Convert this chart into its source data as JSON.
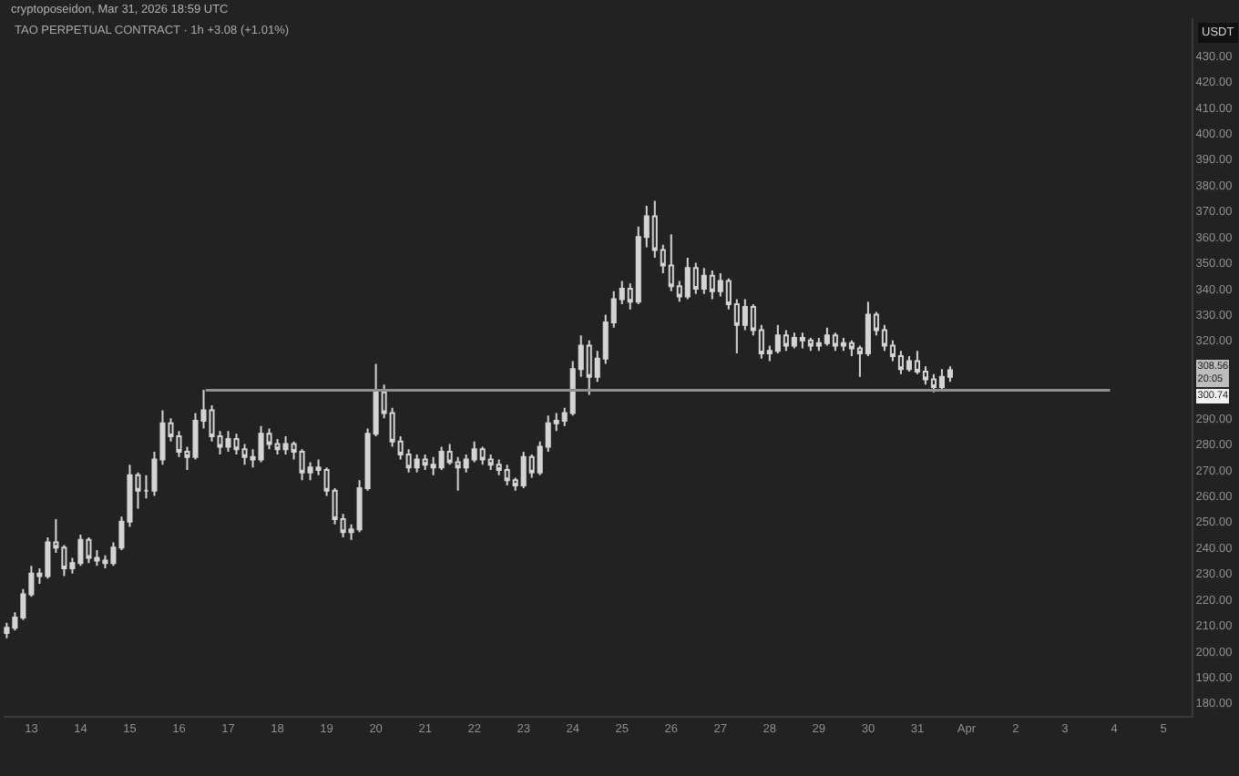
{
  "chart_data": {
    "type": "candlestick",
    "title": "TAO PERPETUAL CONTRACT · 1h +3.08 (+1.01%)",
    "subtitle": "cryptoposeidon, Mar 31, 2026 18:59 UTC",
    "ylabel": "USDT",
    "color": "#d4d4d4",
    "x": [
      "2026-03-12T12:00",
      "2026-03-12T16:00",
      "2026-03-12T20:00",
      "2026-03-13T00:00",
      "2026-03-13T04:00",
      "2026-03-13T08:00",
      "2026-03-13T12:00",
      "2026-03-13T16:00",
      "2026-03-13T20:00",
      "2026-03-14T00:00",
      "2026-03-14T04:00",
      "2026-03-14T08:00",
      "2026-03-14T12:00",
      "2026-03-14T16:00",
      "2026-03-14T20:00",
      "2026-03-15T00:00",
      "2026-03-15T04:00",
      "2026-03-15T08:00",
      "2026-03-15T12:00",
      "2026-03-15T16:00",
      "2026-03-15T20:00",
      "2026-03-16T00:00",
      "2026-03-16T04:00",
      "2026-03-16T08:00",
      "2026-03-16T12:00",
      "2026-03-16T16:00",
      "2026-03-16T20:00",
      "2026-03-17T00:00",
      "2026-03-17T04:00",
      "2026-03-17T08:00",
      "2026-03-17T12:00",
      "2026-03-17T16:00",
      "2026-03-17T20:00",
      "2026-03-18T00:00",
      "2026-03-18T04:00",
      "2026-03-18T08:00",
      "2026-03-18T12:00",
      "2026-03-18T16:00",
      "2026-03-18T20:00",
      "2026-03-19T00:00",
      "2026-03-19T04:00",
      "2026-03-19T08:00",
      "2026-03-19T12:00",
      "2026-03-19T16:00",
      "2026-03-19T20:00",
      "2026-03-20T00:00",
      "2026-03-20T04:00",
      "2026-03-20T08:00",
      "2026-03-20T12:00",
      "2026-03-20T16:00",
      "2026-03-20T20:00",
      "2026-03-21T00:00",
      "2026-03-21T04:00",
      "2026-03-21T08:00",
      "2026-03-21T12:00",
      "2026-03-21T16:00",
      "2026-03-21T20:00",
      "2026-03-22T00:00",
      "2026-03-22T04:00",
      "2026-03-22T08:00",
      "2026-03-22T12:00",
      "2026-03-22T16:00",
      "2026-03-22T20:00",
      "2026-03-23T00:00",
      "2026-03-23T04:00",
      "2026-03-23T08:00",
      "2026-03-23T12:00",
      "2026-03-23T16:00",
      "2026-03-23T20:00",
      "2026-03-24T00:00",
      "2026-03-24T04:00",
      "2026-03-24T08:00",
      "2026-03-24T12:00",
      "2026-03-24T16:00",
      "2026-03-24T20:00",
      "2026-03-25T00:00",
      "2026-03-25T04:00",
      "2026-03-25T08:00",
      "2026-03-25T12:00",
      "2026-03-25T16:00",
      "2026-03-25T20:00",
      "2026-03-26T00:00",
      "2026-03-26T04:00",
      "2026-03-26T08:00",
      "2026-03-26T12:00",
      "2026-03-26T16:00",
      "2026-03-26T20:00",
      "2026-03-27T00:00",
      "2026-03-27T04:00",
      "2026-03-27T08:00",
      "2026-03-27T12:00",
      "2026-03-27T16:00",
      "2026-03-27T20:00",
      "2026-03-28T00:00",
      "2026-03-28T04:00",
      "2026-03-28T08:00",
      "2026-03-28T12:00",
      "2026-03-28T16:00",
      "2026-03-28T20:00",
      "2026-03-29T00:00",
      "2026-03-29T04:00",
      "2026-03-29T08:00",
      "2026-03-29T12:00",
      "2026-03-29T16:00",
      "2026-03-29T20:00",
      "2026-03-30T00:00",
      "2026-03-30T04:00",
      "2026-03-30T08:00",
      "2026-03-30T12:00",
      "2026-03-30T16:00",
      "2026-03-30T20:00",
      "2026-03-31T00:00",
      "2026-03-31T04:00",
      "2026-03-31T08:00",
      "2026-03-31T12:00",
      "2026-03-31T16:00"
    ],
    "ohlc": [
      [
        207,
        211,
        205,
        209
      ],
      [
        209,
        215,
        208,
        213
      ],
      [
        213,
        224,
        212,
        222
      ],
      [
        222,
        233,
        221,
        230
      ],
      [
        230,
        232,
        226,
        229
      ],
      [
        229,
        244,
        228,
        242
      ],
      [
        242,
        251,
        238,
        240
      ],
      [
        240,
        241,
        229,
        232
      ],
      [
        232,
        236,
        230,
        234
      ],
      [
        234,
        245,
        233,
        243
      ],
      [
        243,
        244,
        234,
        236
      ],
      [
        236,
        239,
        233,
        235
      ],
      [
        235,
        237,
        232,
        234
      ],
      [
        234,
        242,
        233,
        240
      ],
      [
        240,
        252,
        239,
        250
      ],
      [
        250,
        272,
        248,
        268
      ],
      [
        268,
        269,
        255,
        262
      ],
      [
        262,
        268,
        259,
        262
      ],
      [
        262,
        277,
        260,
        274
      ],
      [
        274,
        293,
        272,
        288
      ],
      [
        288,
        290,
        281,
        283
      ],
      [
        283,
        285,
        275,
        277
      ],
      [
        277,
        279,
        270,
        275
      ],
      [
        275,
        292,
        274,
        289
      ],
      [
        289,
        301,
        286,
        293
      ],
      [
        293,
        295,
        281,
        283
      ],
      [
        283,
        285,
        276,
        279
      ],
      [
        279,
        285,
        277,
        282
      ],
      [
        282,
        284,
        276,
        278
      ],
      [
        278,
        280,
        272,
        275
      ],
      [
        275,
        278,
        271,
        274
      ],
      [
        274,
        287,
        273,
        284
      ],
      [
        284,
        286,
        278,
        280
      ],
      [
        280,
        282,
        276,
        278
      ],
      [
        278,
        283,
        276,
        280
      ],
      [
        280,
        281,
        274,
        277
      ],
      [
        277,
        278,
        266,
        269
      ],
      [
        269,
        273,
        266,
        271
      ],
      [
        271,
        274,
        268,
        270
      ],
      [
        270,
        271,
        260,
        262
      ],
      [
        262,
        263,
        249,
        251
      ],
      [
        251,
        253,
        244,
        246
      ],
      [
        246,
        249,
        243,
        247
      ],
      [
        247,
        266,
        246,
        263
      ],
      [
        263,
        286,
        262,
        284
      ],
      [
        284,
        311,
        283,
        300
      ],
      [
        300,
        303,
        290,
        292
      ],
      [
        292,
        294,
        279,
        281
      ],
      [
        281,
        283,
        274,
        276
      ],
      [
        276,
        278,
        269,
        271
      ],
      [
        271,
        276,
        269,
        274
      ],
      [
        274,
        276,
        270,
        272
      ],
      [
        272,
        275,
        268,
        271
      ],
      [
        271,
        279,
        270,
        277
      ],
      [
        277,
        280,
        272,
        273
      ],
      [
        273,
        275,
        262,
        271
      ],
      [
        271,
        276,
        269,
        274
      ],
      [
        274,
        281,
        273,
        278
      ],
      [
        278,
        279,
        272,
        274
      ],
      [
        274,
        276,
        270,
        272
      ],
      [
        272,
        274,
        268,
        270
      ],
      [
        270,
        272,
        264,
        266
      ],
      [
        266,
        267,
        262,
        264
      ],
      [
        264,
        277,
        263,
        275
      ],
      [
        275,
        276,
        267,
        269
      ],
      [
        269,
        281,
        268,
        279
      ],
      [
        279,
        291,
        277,
        288
      ],
      [
        288,
        292,
        285,
        289
      ],
      [
        289,
        294,
        287,
        292
      ],
      [
        292,
        312,
        291,
        309
      ],
      [
        309,
        322,
        306,
        318
      ],
      [
        318,
        320,
        299,
        306
      ],
      [
        306,
        316,
        304,
        313
      ],
      [
        313,
        330,
        311,
        327
      ],
      [
        327,
        339,
        325,
        336
      ],
      [
        336,
        343,
        334,
        340
      ],
      [
        340,
        342,
        332,
        335
      ],
      [
        335,
        364,
        334,
        360
      ],
      [
        360,
        372,
        356,
        368
      ],
      [
        368,
        374,
        352,
        355
      ],
      [
        355,
        357,
        346,
        349
      ],
      [
        349,
        361,
        339,
        341
      ],
      [
        341,
        343,
        335,
        337
      ],
      [
        337,
        352,
        336,
        348
      ],
      [
        348,
        350,
        338,
        340
      ],
      [
        340,
        348,
        338,
        345
      ],
      [
        345,
        347,
        336,
        339
      ],
      [
        339,
        346,
        337,
        343
      ],
      [
        343,
        344,
        332,
        334
      ],
      [
        334,
        336,
        315,
        326
      ],
      [
        326,
        336,
        324,
        333
      ],
      [
        333,
        334,
        322,
        324
      ],
      [
        324,
        326,
        313,
        315
      ],
      [
        315,
        318,
        312,
        316
      ],
      [
        316,
        326,
        315,
        322
      ],
      [
        322,
        324,
        316,
        318
      ],
      [
        318,
        323,
        317,
        321
      ],
      [
        321,
        323,
        317,
        320
      ],
      [
        320,
        321,
        316,
        318
      ],
      [
        318,
        321,
        316,
        319
      ],
      [
        319,
        325,
        318,
        322
      ],
      [
        322,
        323,
        316,
        318
      ],
      [
        318,
        321,
        316,
        319
      ],
      [
        319,
        320,
        314,
        317
      ],
      [
        317,
        318,
        306,
        315
      ],
      [
        315,
        335,
        314,
        330
      ],
      [
        330,
        331,
        322,
        324
      ],
      [
        324,
        326,
        316,
        318
      ],
      [
        318,
        320,
        312,
        314
      ],
      [
        314,
        316,
        307,
        309
      ],
      [
        309,
        314,
        308,
        312
      ],
      [
        312,
        316,
        307,
        308
      ],
      [
        308,
        310,
        303,
        305
      ],
      [
        305,
        307,
        300,
        302
      ],
      [
        302,
        309,
        301,
        306
      ],
      [
        306,
        310,
        304,
        308.56
      ]
    ],
    "series": [
      {
        "type": "line",
        "x": [
          "2026-03-16T13:00",
          "2026-04-03T22:00"
        ],
        "values": [
          300.74,
          300.74
        ],
        "color": "#8f8f8f"
      }
    ],
    "annotations": [
      "308.56\n20:05",
      "300.74"
    ],
    "xlim": [
      "2026-03-12T10:30",
      "2026-04-05T13:45"
    ],
    "xticks": [
      {
        "value": "2026-03-13",
        "label": "13"
      },
      {
        "value": "2026-03-14",
        "label": "14"
      },
      {
        "value": "2026-03-15",
        "label": "15"
      },
      {
        "value": "2026-03-16",
        "label": "16"
      },
      {
        "value": "2026-03-17",
        "label": "17"
      },
      {
        "value": "2026-03-18",
        "label": "18"
      },
      {
        "value": "2026-03-19",
        "label": "19"
      },
      {
        "value": "2026-03-20",
        "label": "20"
      },
      {
        "value": "2026-03-21",
        "label": "21"
      },
      {
        "value": "2026-03-22",
        "label": "22"
      },
      {
        "value": "2026-03-23",
        "label": "23"
      },
      {
        "value": "2026-03-24",
        "label": "24"
      },
      {
        "value": "2026-03-25",
        "label": "25"
      },
      {
        "value": "2026-03-26",
        "label": "26"
      },
      {
        "value": "2026-03-27",
        "label": "27"
      },
      {
        "value": "2026-03-28",
        "label": "28"
      },
      {
        "value": "2026-03-29",
        "label": "29"
      },
      {
        "value": "2026-03-30",
        "label": "30"
      },
      {
        "value": "2026-03-31",
        "label": "31"
      },
      {
        "value": "2026-04-01",
        "label": "Apr"
      },
      {
        "value": "2026-04-02",
        "label": "2"
      },
      {
        "value": "2026-04-03",
        "label": "3"
      },
      {
        "value": "2026-04-04",
        "label": "4"
      },
      {
        "value": "2026-04-05",
        "label": "5"
      }
    ],
    "ylim": [
      175,
      444.5
    ],
    "yticks": [
      {
        "value": 180,
        "label": "180.00"
      },
      {
        "value": 190,
        "label": "190.00"
      },
      {
        "value": 200,
        "label": "200.00"
      },
      {
        "value": 210,
        "label": "210.00"
      },
      {
        "value": 220,
        "label": "220.00"
      },
      {
        "value": 230,
        "label": "230.00"
      },
      {
        "value": 240,
        "label": "240.00"
      },
      {
        "value": 250,
        "label": "250.00"
      },
      {
        "value": 260,
        "label": "260.00"
      },
      {
        "value": 270,
        "label": "270.00"
      },
      {
        "value": 280,
        "label": "280.00"
      },
      {
        "value": 290,
        "label": "290.00"
      },
      {
        "value": 320,
        "label": "320.00"
      },
      {
        "value": 330,
        "label": "330.00"
      },
      {
        "value": 340,
        "label": "340.00"
      },
      {
        "value": 350,
        "label": "350.00"
      },
      {
        "value": 360,
        "label": "360.00"
      },
      {
        "value": 370,
        "label": "370.00"
      },
      {
        "value": 380,
        "label": "380.00"
      },
      {
        "value": 390,
        "label": "390.00"
      },
      {
        "value": 400,
        "label": "400.00"
      },
      {
        "value": 410,
        "label": "410.00"
      },
      {
        "value": 420,
        "label": "420.00"
      },
      {
        "value": 430,
        "label": "430.00"
      }
    ]
  }
}
